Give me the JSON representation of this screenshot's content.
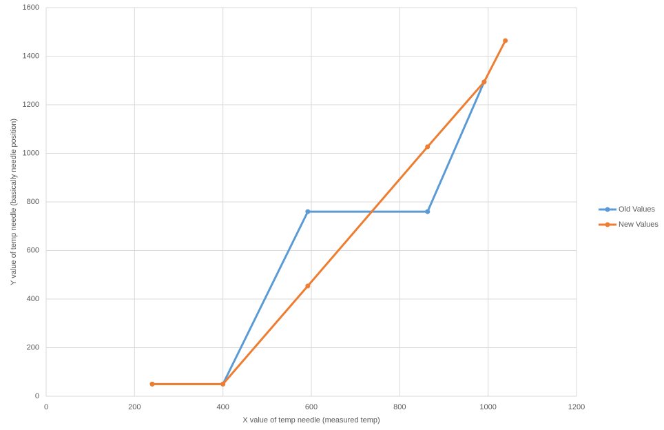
{
  "chart_data": {
    "type": "line",
    "x_label": "X value of temp needle (measured temp)",
    "y_label": "Y value of temp needle (basically needle position)",
    "series": [
      {
        "name": "Old Values",
        "color": "#5b9bd5",
        "x": [
          240,
          400,
          592,
          863,
          991
        ],
        "values": [
          50,
          50,
          760,
          760,
          1294
        ]
      },
      {
        "name": "New Values",
        "color": "#ed7d31",
        "x": [
          240,
          400,
          592,
          863,
          991,
          1039
        ],
        "values": [
          50,
          50,
          454,
          1027,
          1294,
          1464
        ]
      }
    ],
    "xlim": [
      0,
      1200
    ],
    "xticks": [
      0,
      200,
      400,
      600,
      800,
      1000,
      1200
    ],
    "ylim": [
      0,
      1600
    ],
    "yticks": [
      0,
      200,
      400,
      600,
      800,
      1000,
      1200,
      1400,
      1600
    ],
    "grid": true,
    "legend": "right"
  }
}
